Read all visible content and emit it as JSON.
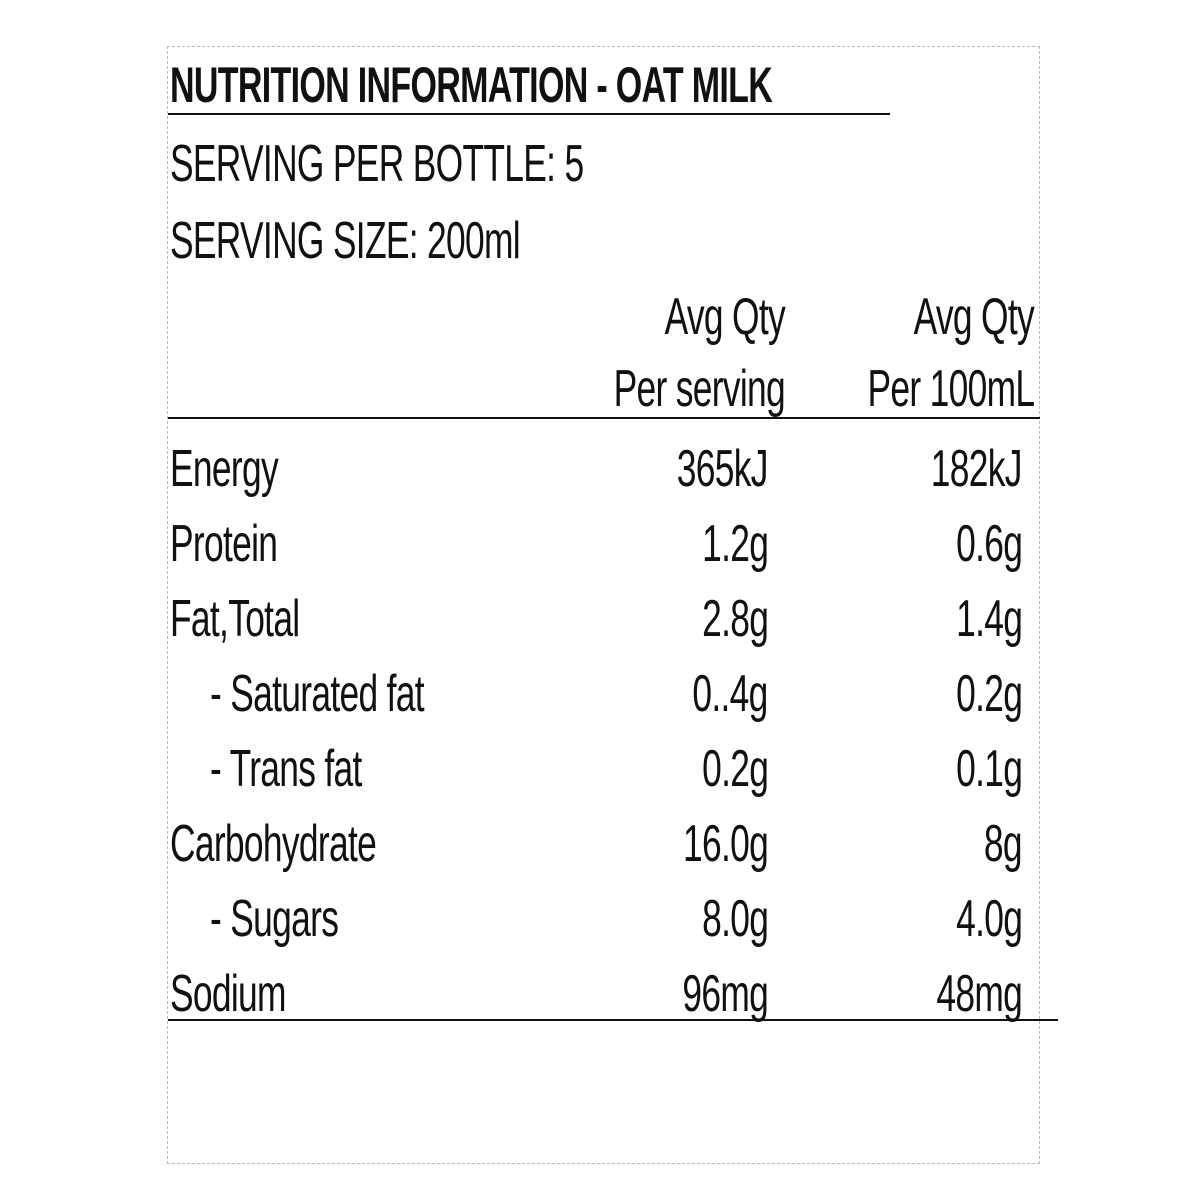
{
  "title": "NUTRITION INFORMATION  -  OAT MILK",
  "servings_per_bottle": "SERVING PER BOTTLE: 5",
  "serving_size": "SERVING SIZE: 200ml",
  "table": {
    "header": [
      [
        "Avg Qty",
        "Per serving"
      ],
      [
        "Avg Qty",
        "Per 100mL"
      ]
    ],
    "rows": [
      [
        "Energy",
        "365kJ",
        "182kJ"
      ],
      [
        "Protein",
        "1.2g",
        "0.6g"
      ],
      [
        "Fat,Total",
        "2.8g",
        "1.4g"
      ],
      [
        "- Saturated fat",
        "0..4g",
        "0.2g"
      ],
      [
        "- Trans fat",
        "0.2g",
        "0.1g"
      ],
      [
        "Carbohydrate",
        "16.0g",
        "8g"
      ],
      [
        "- Sugars",
        "8.0g",
        "4.0g"
      ],
      [
        "Sodium",
        "96mg",
        "48mg"
      ]
    ]
  }
}
